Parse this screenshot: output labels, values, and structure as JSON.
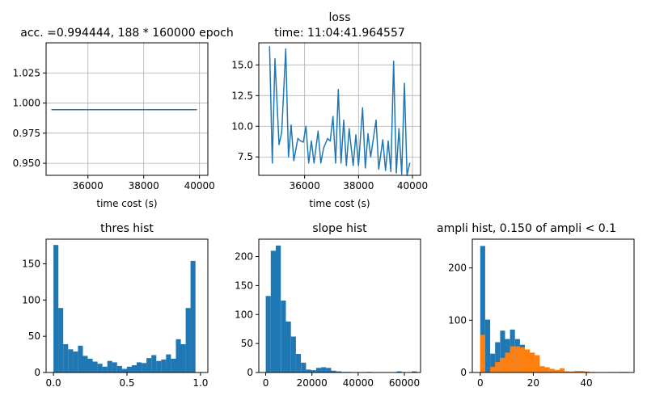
{
  "figure": {
    "background": "#ffffff",
    "colors": {
      "primary": "#1f77b4",
      "secondary": "#ff7f0e",
      "grid": "#b0b0b0"
    }
  },
  "chart_data": [
    {
      "id": "acc",
      "type": "line",
      "title": "acc. =0.994444, 188 * 160000 epoch",
      "xlabel": "time cost (s)",
      "ylabel": "",
      "grid": true,
      "xlim": [
        34500,
        40300
      ],
      "ylim": [
        0.94,
        1.05
      ],
      "xticks": [
        36000,
        38000,
        40000
      ],
      "xtick_labels": [
        "36000",
        "38000",
        "40000"
      ],
      "yticks": [
        0.95,
        0.975,
        1.0,
        1.025
      ],
      "ytick_labels": [
        "0.950",
        "0.975",
        "1.000",
        "1.025"
      ],
      "series": [
        {
          "color": "#1f77b4",
          "x": [
            34700,
            39900
          ],
          "y": [
            0.994444,
            0.994444
          ]
        }
      ]
    },
    {
      "id": "loss",
      "type": "line",
      "title_lines": [
        "loss",
        "time: 11:04:41.964557"
      ],
      "xlabel": "time cost (s)",
      "ylabel": "",
      "grid": true,
      "xlim": [
        34300,
        40300
      ],
      "ylim": [
        6.0,
        16.8
      ],
      "xticks": [
        36000,
        38000,
        40000
      ],
      "xtick_labels": [
        "36000",
        "38000",
        "40000"
      ],
      "yticks": [
        7.5,
        10.0,
        12.5,
        15.0
      ],
      "ytick_labels": [
        "7.5",
        "10.0",
        "12.5",
        "15.0"
      ],
      "series": [
        {
          "color": "#1f77b4",
          "x": [
            34700,
            34800,
            34900,
            35050,
            35150,
            35300,
            35400,
            35500,
            35600,
            35750,
            35850,
            35950,
            36050,
            36150,
            36250,
            36350,
            36500,
            36600,
            36700,
            36850,
            36950,
            37050,
            37150,
            37250,
            37350,
            37450,
            37550,
            37650,
            37800,
            37900,
            38000,
            38150,
            38250,
            38350,
            38450,
            38550,
            38650,
            38750,
            38900,
            39000,
            39100,
            39200,
            39300,
            39400,
            39500,
            39600,
            39700,
            39800,
            39900
          ],
          "y": [
            16.5,
            7.0,
            15.5,
            8.5,
            9.5,
            16.3,
            7.5,
            10.1,
            7.2,
            9.0,
            8.8,
            8.7,
            10.0,
            7.0,
            8.8,
            7.0,
            9.6,
            7.0,
            8.2,
            9.0,
            8.8,
            10.8,
            7.0,
            13.0,
            7.0,
            10.5,
            6.8,
            9.8,
            6.8,
            9.3,
            6.8,
            11.5,
            6.6,
            9.4,
            7.5,
            9.0,
            10.5,
            6.5,
            8.9,
            6.4,
            8.8,
            6.3,
            15.3,
            6.2,
            9.8,
            6.1,
            13.5,
            6.0,
            7.0
          ]
        }
      ]
    },
    {
      "id": "thres",
      "type": "bar",
      "title": "thres hist",
      "grid": false,
      "xlim": [
        -0.05,
        1.05
      ],
      "ylim": [
        0,
        184
      ],
      "xticks": [
        0.0,
        0.5,
        1.0
      ],
      "xtick_labels": [
        "0.0",
        "0.5",
        "1.0"
      ],
      "yticks": [
        0,
        50,
        100,
        150
      ],
      "ytick_labels": [
        "0",
        "50",
        "100",
        "150"
      ],
      "bin_start": 0.0,
      "bin_width": 0.0333,
      "series": [
        {
          "color": "#1f77b4",
          "values": [
            176,
            89,
            39,
            32,
            29,
            37,
            23,
            19,
            15,
            12,
            8,
            16,
            14,
            9,
            5,
            8,
            10,
            14,
            13,
            20,
            24,
            16,
            18,
            25,
            19,
            46,
            39,
            89,
            154,
            0
          ]
        }
      ]
    },
    {
      "id": "slope",
      "type": "bar",
      "title": "slope hist",
      "grid": false,
      "xlim": [
        -3000,
        67000
      ],
      "ylim": [
        0,
        230
      ],
      "xticks": [
        0,
        20000,
        40000,
        60000
      ],
      "xtick_labels": [
        "0",
        "20000",
        "40000",
        "60000"
      ],
      "yticks": [
        0,
        50,
        100,
        150,
        200
      ],
      "ytick_labels": [
        "0",
        "50",
        "100",
        "150",
        "200"
      ],
      "bin_start": 0,
      "bin_width": 2180,
      "series": [
        {
          "color": "#1f77b4",
          "values": [
            132,
            210,
            219,
            124,
            88,
            62,
            32,
            17,
            5,
            4,
            8,
            9,
            8,
            3,
            2,
            1,
            1,
            0,
            0,
            0,
            1,
            0,
            0,
            0,
            0,
            0,
            2,
            0,
            0,
            2
          ]
        }
      ]
    },
    {
      "id": "ampli",
      "type": "bar",
      "title": "ampli hist, 0.150 of ampli < 0.1",
      "grid": false,
      "xlim": [
        -3,
        58
      ],
      "ylim": [
        0,
        255
      ],
      "xticks": [
        0,
        20,
        40
      ],
      "xtick_labels": [
        "0",
        "20",
        "40"
      ],
      "yticks": [
        0,
        100,
        200
      ],
      "ytick_labels": [
        "0",
        "100",
        "200"
      ],
      "series": [
        {
          "color": "#1f77b4",
          "bin_start": 0.0,
          "bin_width": 1.87,
          "values": [
            242,
            101,
            36,
            58,
            80,
            64,
            82,
            64,
            53,
            36,
            37,
            18,
            9,
            9,
            4,
            3,
            3,
            2,
            1,
            1,
            0,
            0,
            0,
            0,
            0,
            0,
            0,
            0,
            1,
            1
          ]
        },
        {
          "color": "#ff7f0e",
          "bin_start": 0.0,
          "bin_width": 1.87,
          "values": [
            72,
            0,
            11,
            20,
            28,
            38,
            50,
            50,
            48,
            44,
            38,
            33,
            12,
            10,
            7,
            5,
            8,
            2,
            2,
            3,
            3,
            2,
            1,
            0,
            0,
            0,
            1,
            0,
            1,
            1
          ]
        }
      ]
    }
  ]
}
